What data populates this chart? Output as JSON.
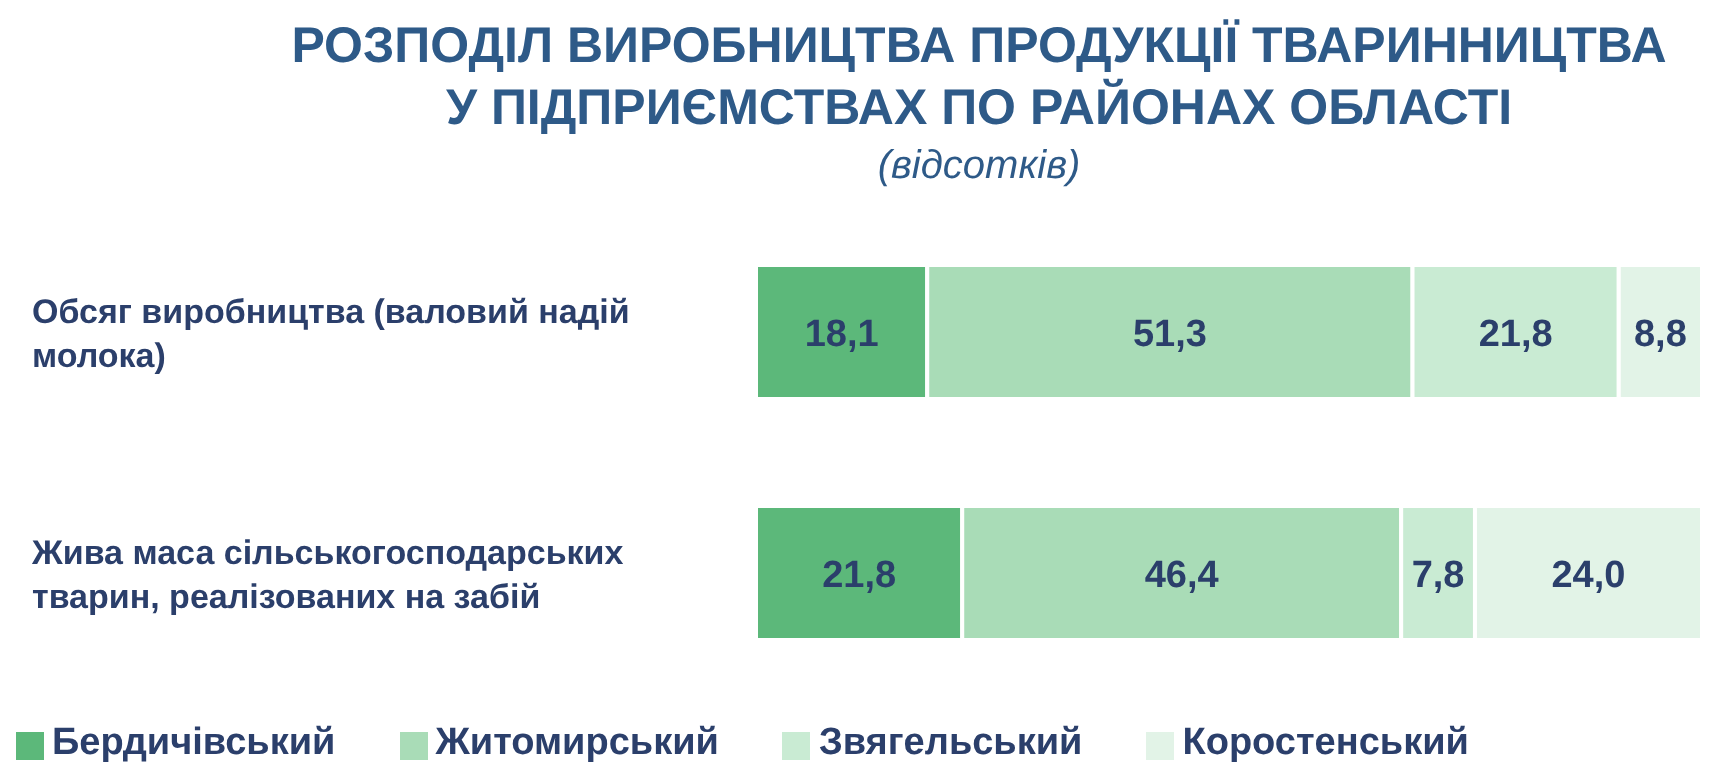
{
  "chart_data": {
    "type": "bar",
    "orientation": "horizontal",
    "stacked": true,
    "title": "РОЗПОДІЛ ВИРОБНИЦТВА ПРОДУКЦІЇ ТВАРИННИЦТВА\nУ ПІДПРИЄМСТВАХ ПО РАЙОНАХ ОБЛАСТІ",
    "subtitle": "(відсотків)",
    "categories": [
      "Обсяг виробництва (валовий надій молока)",
      "Жива маса сільськогосподарських тварин, реалізованих на забій"
    ],
    "series": [
      {
        "name": "Бердичівський",
        "color": "#5cb87a",
        "values": [
          18.1,
          21.8
        ],
        "value_labels": [
          "18,1",
          "21,8"
        ]
      },
      {
        "name": "Житомирський",
        "color": "#a9dcb7",
        "values": [
          51.3,
          46.4
        ],
        "value_labels": [
          "51,3",
          "46,4"
        ]
      },
      {
        "name": "Звягельський",
        "color": "#c9ebd3",
        "values": [
          21.8,
          7.8
        ],
        "value_labels": [
          "21,8",
          "7,8"
        ]
      },
      {
        "name": "Коростенський",
        "color": "#e2f3e7",
        "values": [
          8.8,
          24.0
        ],
        "value_labels": [
          "8,8",
          "24,0"
        ]
      }
    ],
    "xlim": [
      0,
      100
    ],
    "tick_labels": "y",
    "legend": "bottom",
    "grid": false
  }
}
